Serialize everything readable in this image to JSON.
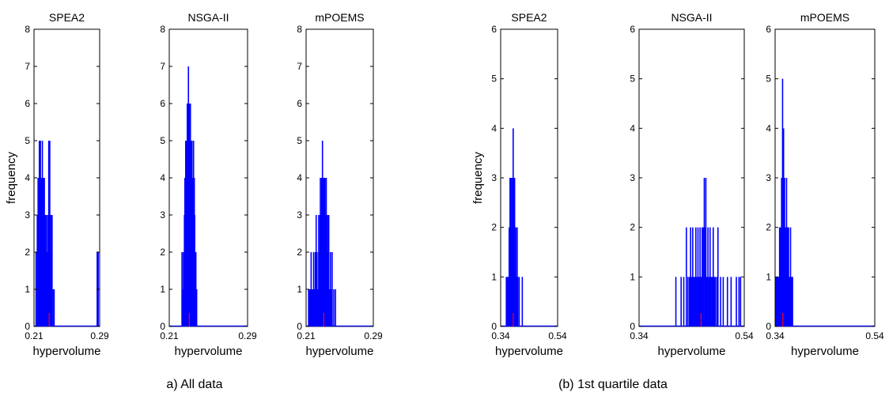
{
  "captions": [
    "a) All data",
    "(b) 1st quartile data"
  ],
  "chart_data": [
    {
      "type": "bar",
      "title": "SPEA2",
      "xlabel": "hypervolume",
      "ylabel": "frequency",
      "xlim": [
        0.21,
        0.29
      ],
      "ylim": [
        0,
        8
      ],
      "xticks": [
        0.21,
        0.29
      ],
      "yticks": [
        0,
        1,
        2,
        3,
        4,
        5,
        6,
        7,
        8
      ],
      "bar_color": "#0000ff",
      "median_color": "#ff0000",
      "median": 0.2285,
      "grid": false,
      "x": [
        0.2125,
        0.214,
        0.215,
        0.2158,
        0.2165,
        0.2172,
        0.2178,
        0.2184,
        0.219,
        0.2196,
        0.2202,
        0.2208,
        0.2214,
        0.222,
        0.2226,
        0.2232,
        0.2238,
        0.2244,
        0.225,
        0.2256,
        0.2262,
        0.2268,
        0.2274,
        0.228,
        0.2286,
        0.2292,
        0.2298,
        0.2304,
        0.2312,
        0.232,
        0.2335,
        0.2345,
        0.287,
        0.2882
      ],
      "values": [
        2,
        3,
        4,
        3,
        5,
        3,
        5,
        2,
        4,
        3,
        5,
        2,
        4,
        3,
        4,
        2,
        3,
        2,
        3,
        2,
        1,
        3,
        1,
        5,
        4,
        5,
        3,
        2,
        3,
        3,
        1,
        1,
        2,
        2
      ]
    },
    {
      "type": "bar",
      "title": "NSGA-II",
      "xlabel": "hypervolume",
      "ylabel": "",
      "xlim": [
        0.21,
        0.29
      ],
      "ylim": [
        0,
        8
      ],
      "xticks": [
        0.21,
        0.29
      ],
      "yticks": [
        0,
        1,
        2,
        3,
        4,
        5,
        6,
        7,
        8
      ],
      "bar_color": "#0000ff",
      "median_color": "#ff0000",
      "median": 0.2305,
      "grid": false,
      "x": [
        0.223,
        0.2238,
        0.2245,
        0.225,
        0.2255,
        0.226,
        0.2264,
        0.2268,
        0.2272,
        0.2276,
        0.228,
        0.2284,
        0.2288,
        0.2292,
        0.2296,
        0.23,
        0.2304,
        0.2308,
        0.2312,
        0.2316,
        0.232,
        0.2324,
        0.2328,
        0.2332,
        0.2336,
        0.234,
        0.2344,
        0.2348,
        0.2352,
        0.2356,
        0.236,
        0.2364,
        0.2368,
        0.2372,
        0.2376,
        0.238
      ],
      "values": [
        2,
        1,
        2,
        2,
        3,
        4,
        3,
        5,
        4,
        3,
        5,
        6,
        5,
        6,
        7,
        5,
        6,
        4,
        5,
        6,
        3,
        5,
        4,
        5,
        3,
        4,
        3,
        5,
        2,
        4,
        3,
        2,
        1,
        2,
        1,
        1
      ]
    },
    {
      "type": "bar",
      "title": "mPOEMS",
      "xlabel": "hypervolume",
      "ylabel": "",
      "xlim": [
        0.21,
        0.29
      ],
      "ylim": [
        0,
        8
      ],
      "xticks": [
        0.21,
        0.29
      ],
      "yticks": [
        0,
        1,
        2,
        3,
        4,
        5,
        6,
        7,
        8
      ],
      "bar_color": "#0000ff",
      "median_color": "#ff0000",
      "median": 0.231,
      "grid": false,
      "x": [
        0.213,
        0.214,
        0.215,
        0.216,
        0.217,
        0.218,
        0.219,
        0.22,
        0.221,
        0.222,
        0.223,
        0.224,
        0.225,
        0.2255,
        0.226,
        0.2265,
        0.227,
        0.2275,
        0.228,
        0.2285,
        0.229,
        0.2295,
        0.23,
        0.2305,
        0.231,
        0.2315,
        0.232,
        0.2325,
        0.233,
        0.2335,
        0.234,
        0.2345,
        0.235,
        0.2355,
        0.236,
        0.2365,
        0.237,
        0.238,
        0.239,
        0.24,
        0.241,
        0.243,
        0.245
      ],
      "values": [
        1,
        1,
        1,
        2,
        1,
        1,
        2,
        1,
        2,
        3,
        2,
        1,
        3,
        2,
        1,
        3,
        4,
        3,
        2,
        4,
        3,
        5,
        2,
        4,
        3,
        4,
        2,
        4,
        3,
        2,
        4,
        3,
        2,
        3,
        1,
        2,
        3,
        1,
        2,
        1,
        2,
        1,
        1
      ]
    },
    {
      "type": "bar",
      "title": "SPEA2",
      "xlabel": "hypervolume",
      "ylabel": "frequency",
      "xlim": [
        0.34,
        0.54
      ],
      "ylim": [
        0,
        6
      ],
      "xticks": [
        0.34,
        0.54
      ],
      "yticks": [
        0,
        1,
        2,
        3,
        4,
        5,
        6
      ],
      "bar_color": "#0000ff",
      "median_color": "#ff0000",
      "median": 0.3842,
      "grid": false,
      "x": [
        0.36,
        0.364,
        0.368,
        0.37,
        0.372,
        0.373,
        0.374,
        0.375,
        0.376,
        0.377,
        0.378,
        0.379,
        0.38,
        0.381,
        0.382,
        0.383,
        0.384,
        0.385,
        0.386,
        0.387,
        0.388,
        0.389,
        0.39,
        0.391,
        0.392,
        0.393,
        0.394,
        0.396,
        0.398,
        0.4,
        0.405,
        0.416
      ],
      "values": [
        1,
        1,
        1,
        2,
        1,
        3,
        1,
        2,
        3,
        1,
        2,
        1,
        3,
        1,
        2,
        1,
        4,
        1,
        2,
        3,
        1,
        3,
        1,
        2,
        1,
        2,
        1,
        1,
        2,
        1,
        1,
        1
      ]
    },
    {
      "type": "bar",
      "title": "NSGA-II",
      "xlabel": "hypervolume",
      "ylabel": "",
      "xlim": [
        0.34,
        0.54
      ],
      "ylim": [
        0,
        6
      ],
      "xticks": [
        0.34,
        0.54
      ],
      "yticks": [
        0,
        1,
        2,
        3,
        4,
        5,
        6
      ],
      "bar_color": "#0000ff",
      "median_color": "#ff0000",
      "median": 0.458,
      "grid": false,
      "x": [
        0.41,
        0.42,
        0.425,
        0.43,
        0.433,
        0.436,
        0.438,
        0.44,
        0.442,
        0.444,
        0.446,
        0.448,
        0.45,
        0.452,
        0.454,
        0.456,
        0.458,
        0.46,
        0.462,
        0.464,
        0.465,
        0.467,
        0.469,
        0.471,
        0.473,
        0.475,
        0.477,
        0.479,
        0.481,
        0.483,
        0.485,
        0.488,
        0.49,
        0.495,
        0.5,
        0.508,
        0.515,
        0.525,
        0.53,
        0.533
      ],
      "values": [
        1,
        1,
        1,
        2,
        1,
        1,
        2,
        1,
        2,
        1,
        1,
        2,
        1,
        2,
        1,
        2,
        1,
        2,
        2,
        3,
        2,
        3,
        1,
        2,
        1,
        2,
        1,
        1,
        2,
        1,
        1,
        1,
        2,
        1,
        1,
        1,
        1,
        1,
        1,
        1
      ]
    },
    {
      "type": "bar",
      "title": "mPOEMS",
      "xlabel": "hypervolume",
      "ylabel": "",
      "xlim": [
        0.34,
        0.54
      ],
      "ylim": [
        0,
        6
      ],
      "xticks": [
        0.34,
        0.54
      ],
      "yticks": [
        0,
        1,
        2,
        3,
        4,
        5,
        6
      ],
      "bar_color": "#0000ff",
      "median_color": "#ff0000",
      "median": 0.3555,
      "grid": false,
      "x": [
        0.342,
        0.344,
        0.346,
        0.348,
        0.349,
        0.35,
        0.351,
        0.352,
        0.353,
        0.354,
        0.355,
        0.356,
        0.357,
        0.358,
        0.359,
        0.36,
        0.361,
        0.362,
        0.363,
        0.364,
        0.365,
        0.366,
        0.367,
        0.368,
        0.369,
        0.371,
        0.373,
        0.375
      ],
      "values": [
        1,
        1,
        1,
        1,
        2,
        1,
        2,
        1,
        3,
        2,
        5,
        1,
        4,
        2,
        3,
        2,
        1,
        2,
        3,
        1,
        2,
        1,
        2,
        1,
        1,
        2,
        1,
        1
      ]
    }
  ]
}
